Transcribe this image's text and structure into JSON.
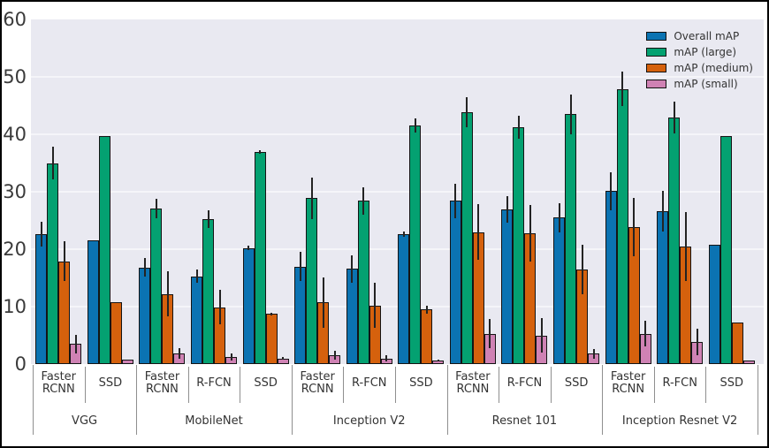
{
  "chart_data": {
    "type": "bar",
    "title": "",
    "xlabel": "",
    "ylabel": "",
    "ylim": [
      0,
      60
    ],
    "yticks": [
      0,
      10,
      20,
      30,
      40,
      50,
      60
    ],
    "gridlines": [
      10,
      20,
      30,
      40,
      50
    ],
    "grid": "horizontal",
    "legend_position": "upper-right",
    "plot_background": "#e9e9f1",
    "bar_edge_color": "#141414",
    "error_bar_color": "#232323",
    "separator_color": "#8f8f8f",
    "series": [
      {
        "name": "Overall mAP",
        "color": "#0b73b2"
      },
      {
        "name": "mAP (large)",
        "color": "#04a171"
      },
      {
        "name": "mAP (medium)",
        "color": "#d5610d"
      },
      {
        "name": "mAP (small)",
        "color": "#cf82b4"
      }
    ],
    "groups": [
      {
        "backbone": "VGG",
        "models": [
          {
            "label": "Faster RCNN",
            "values": [
              22.6,
              35.0,
              17.9,
              3.5
            ],
            "errors": [
              2.1,
              2.9,
              3.5,
              1.6
            ]
          },
          {
            "label": "SSD",
            "values": [
              21.6,
              39.7,
              10.7,
              0.8
            ],
            "errors": [
              0,
              0,
              0,
              0
            ]
          }
        ]
      },
      {
        "backbone": "MobileNet",
        "models": [
          {
            "label": "Faster RCNN",
            "values": [
              16.8,
              27.1,
              12.2,
              1.9
            ],
            "errors": [
              1.6,
              1.7,
              3.9,
              0.9
            ]
          },
          {
            "label": "R-FCN",
            "values": [
              15.3,
              25.2,
              9.9,
              1.2
            ],
            "errors": [
              1.1,
              1.5,
              3.0,
              0.6
            ]
          },
          {
            "label": "SSD",
            "values": [
              20.2,
              36.9,
              8.7,
              1.0
            ],
            "errors": [
              0.4,
              0.3,
              0.3,
              0.2
            ]
          }
        ]
      },
      {
        "backbone": "Inception V2",
        "models": [
          {
            "label": "Faster RCNN",
            "values": [
              17.0,
              28.9,
              10.7,
              1.5
            ],
            "errors": [
              2.6,
              3.6,
              4.4,
              0.8
            ]
          },
          {
            "label": "R-FCN",
            "values": [
              16.6,
              28.4,
              10.2,
              1.0
            ],
            "errors": [
              2.4,
              2.4,
              3.9,
              0.6
            ]
          },
          {
            "label": "SSD",
            "values": [
              22.6,
              41.5,
              9.5,
              0.6
            ],
            "errors": [
              0.5,
              1.2,
              0.7,
              0.2
            ]
          }
        ]
      },
      {
        "backbone": "Resnet 101",
        "models": [
          {
            "label": "Faster RCNN",
            "values": [
              28.4,
              43.8,
              23.0,
              5.3
            ],
            "errors": [
              3.0,
              2.6,
              4.9,
              2.6
            ]
          },
          {
            "label": "R-FCN",
            "values": [
              26.9,
              41.2,
              22.8,
              5.0
            ],
            "errors": [
              2.3,
              2.0,
              4.9,
              3.0
            ]
          },
          {
            "label": "SSD",
            "values": [
              25.5,
              43.5,
              16.4,
              1.8
            ],
            "errors": [
              2.5,
              3.5,
              4.3,
              0.8
            ]
          }
        ]
      },
      {
        "backbone": "Inception Resnet V2",
        "models": [
          {
            "label": "Faster RCNN",
            "values": [
              30.1,
              47.9,
              23.8,
              5.3
            ],
            "errors": [
              3.3,
              3.0,
              5.1,
              2.2
            ]
          },
          {
            "label": "R-FCN",
            "values": [
              26.6,
              42.9,
              20.4,
              3.9
            ],
            "errors": [
              3.5,
              2.8,
              6.0,
              2.3
            ]
          },
          {
            "label": "SSD",
            "values": [
              20.7,
              39.7,
              7.3,
              0.6
            ],
            "errors": [
              0,
              0,
              0,
              0
            ]
          }
        ]
      }
    ]
  }
}
